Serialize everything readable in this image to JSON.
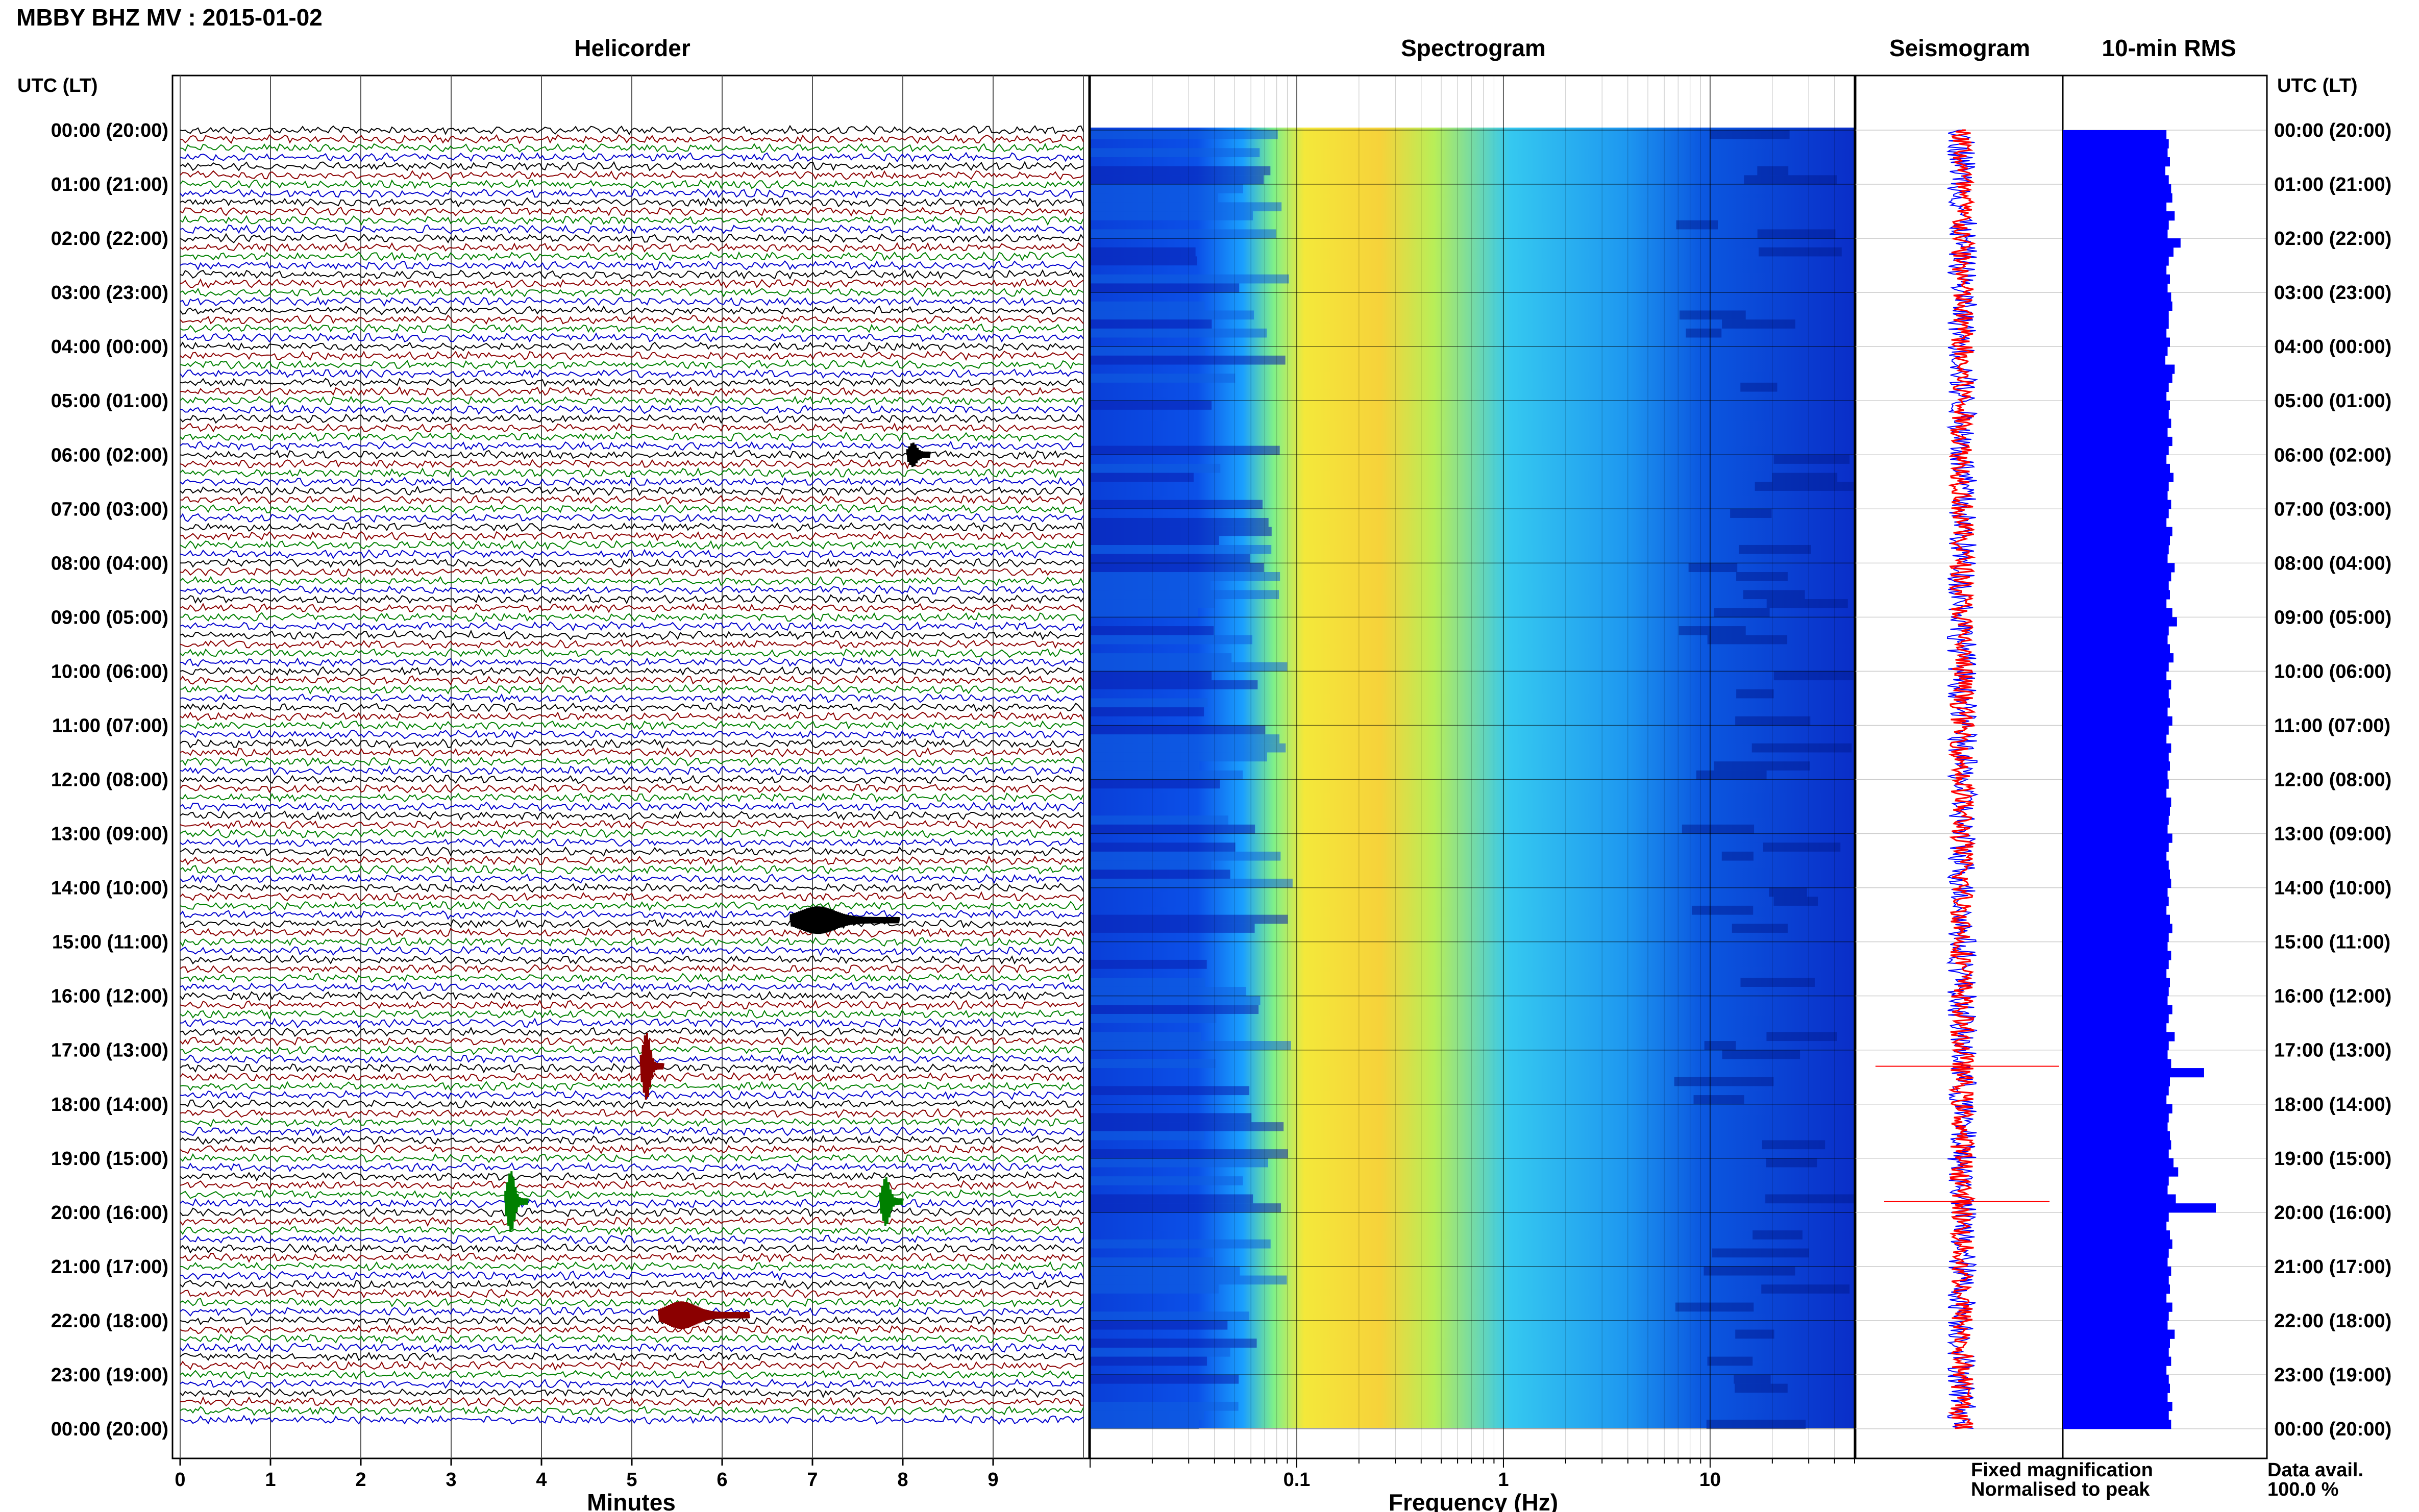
{
  "title": "MBBY BHZ MV : 2015-01-02",
  "panel_titles": {
    "helicorder": "Helicorder",
    "spectrogram": "Spectrogram",
    "seismogram": "Seismogram",
    "rms": "10-min RMS"
  },
  "time_axis_label": "UTC (LT)",
  "hour_labels": [
    "00:00 (20:00)",
    "01:00 (21:00)",
    "02:00 (22:00)",
    "03:00 (23:00)",
    "04:00 (00:00)",
    "05:00 (01:00)",
    "06:00 (02:00)",
    "07:00 (03:00)",
    "08:00 (04:00)",
    "09:00 (05:00)",
    "10:00 (06:00)",
    "11:00 (07:00)",
    "12:00 (08:00)",
    "13:00 (09:00)",
    "14:00 (10:00)",
    "15:00 (11:00)",
    "16:00 (12:00)",
    "17:00 (13:00)",
    "18:00 (14:00)",
    "19:00 (15:00)",
    "20:00 (16:00)",
    "21:00 (17:00)",
    "22:00 (18:00)",
    "23:00 (19:00)",
    "00:00 (20:00)"
  ],
  "legend": {
    "fixed_label": "Fixed magnification",
    "fixed_color": "#0000ff",
    "normalised_label": "Normalised to peak",
    "normalised_color": "#ff0000"
  },
  "data_avail": {
    "label": "Data avail.",
    "value": "100.0 %"
  },
  "colors": {
    "trace_cycle": [
      "#000000",
      "#8b0000",
      "#008000",
      "#0000cd"
    ],
    "rms_bar": "#0000ff",
    "spectrogram_low": "#0018c0",
    "spectrogram_high": "#ffee00"
  },
  "chart_data": [
    {
      "type": "line",
      "panel": "helicorder",
      "title": "Helicorder",
      "xlabel": "Minutes",
      "x_ticks": [
        "0",
        "1",
        "2",
        "3",
        "4",
        "5",
        "6",
        "7",
        "8",
        "9"
      ],
      "xlim": [
        0,
        10
      ],
      "y_range_hours": [
        0,
        24
      ],
      "rows_per_hour": 6,
      "row_minutes": 10,
      "events": [
        {
          "hour": 17.3,
          "minute": 5.15,
          "color": "#8b0000",
          "amplitude": 1.0
        },
        {
          "hour": 19.8,
          "minute": 3.65,
          "color": "#008000",
          "amplitude": 0.9
        },
        {
          "hour": 19.8,
          "minute": 7.8,
          "color": "#008000",
          "amplitude": 0.7
        },
        {
          "hour": 14.6,
          "minute": 7.0,
          "color": "#000000",
          "amplitude": 0.35,
          "duration_min": 1.2
        },
        {
          "hour": 21.9,
          "minute": 5.5,
          "color": "#8b0000",
          "amplitude": 0.35,
          "duration_min": 1.0
        },
        {
          "hour": 6.0,
          "minute": 8.1,
          "color": "#000000",
          "amplitude": 0.3
        }
      ]
    },
    {
      "type": "heatmap",
      "panel": "spectrogram",
      "title": "Spectrogram",
      "xlabel": "Frequency (Hz)",
      "x_scale": "log",
      "xlim": [
        0.01,
        50
      ],
      "x_ticks": [
        "0.1",
        "1",
        "10"
      ],
      "peak_band_hz": [
        0.2,
        0.6
      ],
      "y_range_hours": [
        0,
        24
      ]
    },
    {
      "type": "line",
      "panel": "seismogram",
      "title": "Seismogram",
      "series": [
        {
          "name": "Fixed magnification",
          "color": "#0000ff"
        },
        {
          "name": "Normalised to peak",
          "color": "#ff0000"
        }
      ],
      "y_range_hours": [
        0,
        24
      ]
    },
    {
      "type": "bar",
      "panel": "rms",
      "title": "10-min RMS",
      "orientation": "horizontal",
      "y_range_hours": [
        0,
        24
      ],
      "values": [
        0.88,
        0.9,
        0.89,
        0.91,
        0.87,
        0.9,
        0.92,
        0.93,
        0.88,
        0.95,
        0.9,
        0.89,
        1.0,
        0.94,
        0.9,
        0.88,
        0.91,
        0.89,
        0.92,
        0.93,
        0.9,
        0.9,
        0.88,
        0.91,
        0.89,
        0.87,
        0.95,
        0.93,
        0.9,
        0.88,
        0.91,
        0.9,
        0.92,
        0.89,
        0.93,
        0.9,
        0.88,
        0.91,
        0.94,
        0.9,
        0.89,
        0.92,
        0.9,
        0.88,
        0.93,
        0.91,
        0.9,
        0.89,
        0.95,
        0.92,
        0.9,
        0.91,
        0.88,
        0.93,
        0.97,
        0.9,
        0.89,
        0.91,
        0.94,
        0.9,
        0.88,
        0.92,
        0.9,
        0.91,
        0.89,
        0.93,
        0.9,
        0.88,
        0.92,
        0.9,
        0.91,
        0.89,
        0.9,
        0.88,
        0.92,
        0.91,
        0.9,
        0.89,
        0.93,
        0.9,
        0.88,
        0.9,
        0.91,
        0.92,
        0.89,
        0.9,
        0.88,
        0.91,
        0.93,
        0.9,
        0.89,
        0.92,
        0.9,
        0.88,
        0.91,
        0.9,
        0.89,
        0.93,
        0.9,
        0.88,
        0.95,
        0.9,
        0.89,
        0.92,
        1.2,
        0.91,
        0.9,
        0.88,
        0.93,
        0.9,
        0.89,
        0.91,
        0.92,
        0.9,
        0.94,
        0.98,
        0.9,
        0.89,
        0.96,
        1.3,
        0.9,
        0.88,
        0.91,
        0.93,
        0.9,
        0.89,
        0.92,
        0.9,
        0.91,
        0.88,
        0.93,
        0.9,
        0.89,
        0.95,
        0.91,
        0.9,
        0.92,
        0.88,
        0.9,
        0.91,
        0.89,
        0.93,
        0.9,
        0.92
      ]
    }
  ]
}
